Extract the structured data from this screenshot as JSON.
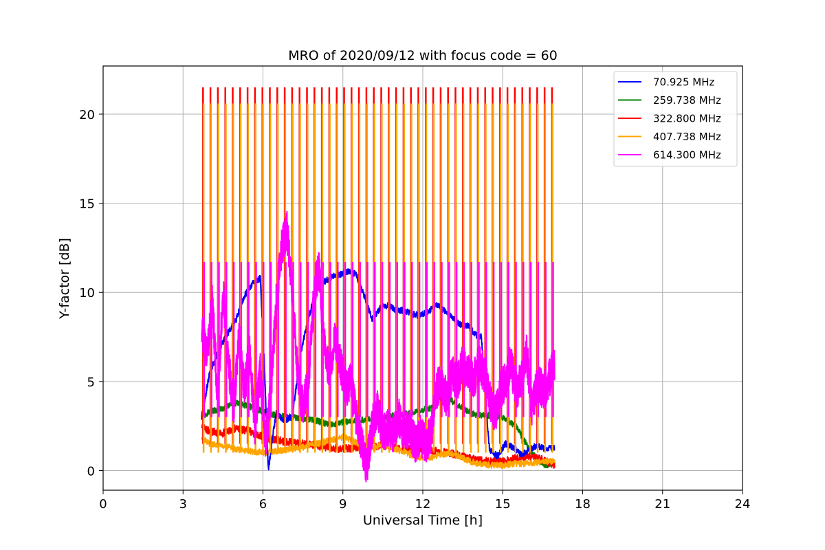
{
  "chart_data": {
    "type": "line",
    "title": "MRO of 2020/09/12 with focus code = 60",
    "xlabel": "Universal Time [h]",
    "ylabel": "Y-factor [dB]",
    "xlim": [
      0,
      24
    ],
    "ylim": [
      -1.1,
      22.7
    ],
    "xticks": [
      0,
      3,
      6,
      9,
      12,
      15,
      18,
      21,
      24
    ],
    "yticks": [
      0,
      5,
      10,
      15,
      20
    ],
    "grid": true,
    "legend_position": "top-right",
    "time_range": [
      3.7,
      16.95
    ],
    "calibration_spikes": {
      "count": 48,
      "start": 3.75,
      "end": 16.85,
      "peak_322_800": 21.5,
      "peak_407_738": 20.6,
      "peak_614_300": 11.7
    },
    "series": [
      {
        "name": " 70.925 MHz",
        "color": "#0000ff",
        "x": [
          3.7,
          4.0,
          4.3,
          4.6,
          5.0,
          5.3,
          5.6,
          5.9,
          6.05,
          6.2,
          6.35,
          6.5,
          6.8,
          7.1,
          7.4,
          7.7,
          8.0,
          8.3,
          8.6,
          8.9,
          9.2,
          9.5,
          9.8,
          10.1,
          10.4,
          10.7,
          11.0,
          11.3,
          11.6,
          11.9,
          12.2,
          12.5,
          12.8,
          13.1,
          13.4,
          13.7,
          14.0,
          14.2,
          14.35,
          14.5,
          14.8,
          15.1,
          15.4,
          15.7,
          16.0,
          16.3,
          16.6,
          16.95
        ],
        "y": [
          3.0,
          5.5,
          6.6,
          7.5,
          8.5,
          9.8,
          10.5,
          10.8,
          6.0,
          0.0,
          1.8,
          3.2,
          2.8,
          3.0,
          6.5,
          8.5,
          10.2,
          10.6,
          10.9,
          11.0,
          11.2,
          11.0,
          9.8,
          8.5,
          9.1,
          9.3,
          9.0,
          9.0,
          8.8,
          8.7,
          8.9,
          9.3,
          9.0,
          8.6,
          8.2,
          8.1,
          7.6,
          7.5,
          4.0,
          1.2,
          0.8,
          1.5,
          1.3,
          0.9,
          1.2,
          1.4,
          1.2,
          1.3
        ]
      },
      {
        "name": "259.738 MHz",
        "color": "#008000",
        "x": [
          3.7,
          4.0,
          4.5,
          5.0,
          5.5,
          6.0,
          6.5,
          7.0,
          7.5,
          8.0,
          8.5,
          9.0,
          9.5,
          10.0,
          10.5,
          11.0,
          11.5,
          12.0,
          12.5,
          12.8,
          13.1,
          13.5,
          14.0,
          14.5,
          15.0,
          15.5,
          16.0,
          16.3,
          16.6,
          16.95
        ],
        "y": [
          3.0,
          3.3,
          3.5,
          3.8,
          3.6,
          3.3,
          3.1,
          3.0,
          2.9,
          2.8,
          2.6,
          2.7,
          2.8,
          2.9,
          3.0,
          3.1,
          3.2,
          3.4,
          3.6,
          4.7,
          3.9,
          3.5,
          3.1,
          3.1,
          3.0,
          2.5,
          1.2,
          0.6,
          0.3,
          0.4
        ]
      },
      {
        "name": "322.800 MHz",
        "color": "#ff0000",
        "x": [
          3.7,
          4.0,
          4.5,
          5.0,
          5.5,
          6.0,
          6.5,
          7.0,
          7.5,
          8.0,
          8.5,
          9.0,
          9.5,
          10.0,
          10.5,
          11.0,
          11.5,
          12.0,
          12.5,
          13.0,
          13.5,
          14.0,
          14.5,
          15.0,
          15.5,
          16.0,
          16.5,
          16.95
        ],
        "y": [
          2.5,
          2.2,
          2.1,
          2.4,
          2.2,
          1.9,
          1.7,
          1.6,
          1.5,
          1.4,
          1.3,
          1.2,
          1.3,
          1.3,
          1.4,
          1.3,
          1.2,
          1.2,
          1.1,
          1.0,
          0.8,
          0.6,
          0.5,
          0.5,
          0.7,
          0.8,
          0.6,
          0.3
        ]
      },
      {
        "name": "407.738 MHz",
        "color": "#ffa500",
        "x": [
          3.7,
          4.0,
          4.5,
          5.0,
          5.5,
          6.0,
          6.5,
          7.0,
          7.5,
          8.0,
          8.5,
          9.0,
          9.5,
          10.0,
          10.5,
          11.0,
          11.5,
          12.0,
          12.5,
          13.0,
          13.5,
          14.0,
          14.5,
          15.0,
          15.5,
          16.0,
          16.5,
          16.95
        ],
        "y": [
          1.8,
          1.5,
          1.4,
          1.2,
          1.1,
          1.0,
          1.1,
          1.2,
          1.3,
          1.5,
          1.7,
          1.9,
          1.6,
          1.2,
          1.5,
          1.2,
          0.9,
          0.7,
          0.8,
          1.0,
          0.7,
          0.4,
          0.3,
          0.3,
          0.4,
          0.4,
          0.5,
          0.5
        ]
      },
      {
        "name": "614.300 MHz",
        "color": "#ff00ff",
        "x": [
          3.7,
          3.9,
          4.1,
          4.3,
          4.5,
          4.7,
          4.9,
          5.1,
          5.3,
          5.5,
          5.7,
          5.9,
          6.1,
          6.3,
          6.5,
          6.7,
          6.9,
          7.1,
          7.3,
          7.5,
          7.7,
          7.9,
          8.1,
          8.3,
          8.5,
          8.7,
          8.9,
          9.1,
          9.3,
          9.5,
          9.7,
          9.9,
          10.1,
          10.3,
          10.5,
          10.7,
          10.9,
          11.1,
          11.3,
          11.5,
          11.7,
          11.9,
          12.1,
          12.3,
          12.5,
          12.7,
          12.9,
          13.1,
          13.3,
          13.5,
          13.7,
          13.9,
          14.1,
          14.3,
          14.5,
          14.7,
          14.9,
          15.1,
          15.3,
          15.5,
          15.7,
          15.9,
          16.1,
          16.3,
          16.5,
          16.7,
          16.95
        ],
        "y": [
          8.0,
          6.5,
          9.5,
          4.0,
          10.0,
          6.0,
          3.5,
          7.5,
          4.5,
          6.5,
          2.5,
          5.5,
          1.5,
          4.5,
          9.5,
          12.5,
          13.5,
          10.0,
          5.5,
          3.5,
          5.0,
          9.5,
          11.5,
          7.0,
          5.5,
          7.5,
          6.0,
          4.5,
          5.0,
          3.0,
          1.5,
          0.2,
          2.5,
          3.5,
          2.0,
          2.5,
          2.0,
          3.0,
          2.0,
          2.5,
          1.5,
          2.0,
          1.5,
          2.0,
          4.5,
          5.0,
          4.0,
          5.5,
          5.0,
          6.0,
          5.5,
          5.0,
          6.0,
          5.5,
          4.0,
          3.0,
          4.5,
          5.0,
          6.0,
          4.5,
          5.0,
          6.5,
          3.5,
          5.0,
          4.5,
          5.0,
          6.0
        ]
      }
    ]
  }
}
